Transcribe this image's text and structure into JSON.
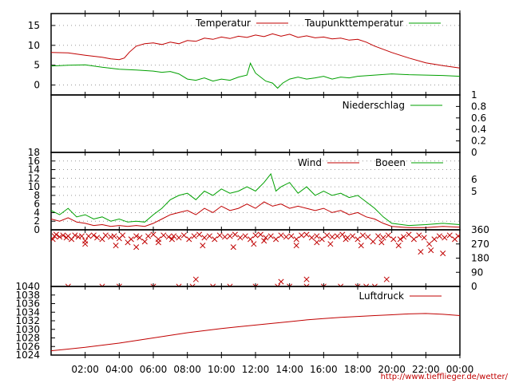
{
  "chart_data": {
    "type": "line",
    "credit": "http://www.tiefflieger.de/wetter/",
    "x_axis": {
      "labels": [
        "02:00",
        "04:00",
        "06:00",
        "08:00",
        "10:00",
        "12:00",
        "14:00",
        "16:00",
        "18:00",
        "20:00",
        "22:00",
        "00:00"
      ],
      "range_hours": [
        0,
        24
      ]
    },
    "panels": [
      {
        "id": "temperature",
        "ylim": [
          -2.5,
          18
        ],
        "y_ticks": [
          0,
          5,
          10,
          15
        ],
        "y_tick_labels": [
          "0",
          "5",
          "10",
          "15"
        ],
        "grid": true,
        "series": [
          {
            "name": "Temperatur",
            "color": "#c00000",
            "x": [
              0,
              1,
              2,
              3,
              3.5,
              4,
              4.3,
              4.6,
              5,
              5.5,
              6,
              6.5,
              7,
              7.5,
              8,
              8.5,
              9,
              9.5,
              10,
              10.5,
              11,
              11.5,
              12,
              12.5,
              13,
              13.5,
              14,
              14.5,
              15,
              15.5,
              16,
              16.5,
              17,
              17.5,
              18,
              18.5,
              19,
              20,
              21,
              22,
              23,
              24
            ],
            "y": [
              8.2,
              8.1,
              7.5,
              7.0,
              6.6,
              6.4,
              6.8,
              8.3,
              9.8,
              10.4,
              10.6,
              10.2,
              10.8,
              10.4,
              11.2,
              11.0,
              11.8,
              11.5,
              12.1,
              11.7,
              12.3,
              12.0,
              12.6,
              12.2,
              12.9,
              12.3,
              12.8,
              12.0,
              12.4,
              11.9,
              12.1,
              11.6,
              11.8,
              11.3,
              11.5,
              10.8,
              9.8,
              8.2,
              6.8,
              5.6,
              4.9,
              4.3
            ]
          },
          {
            "name": "Taupunkttemperatur",
            "color": "#00a000",
            "x": [
              0,
              1,
              2,
              3,
              4,
              5,
              6,
              6.5,
              7,
              7.5,
              8,
              8.5,
              9,
              9.5,
              10,
              10.5,
              11,
              11.5,
              11.7,
              12,
              12.3,
              12.6,
              13,
              13.3,
              13.6,
              14,
              14.5,
              15,
              15.5,
              16,
              16.5,
              17,
              17.5,
              18,
              19,
              20,
              21,
              22,
              23,
              24
            ],
            "y": [
              4.8,
              5.0,
              5.1,
              4.5,
              4.0,
              3.8,
              3.5,
              3.2,
              3.4,
              2.8,
              1.5,
              1.2,
              1.8,
              1.0,
              1.5,
              1.2,
              2.0,
              2.5,
              5.5,
              3.0,
              2.0,
              1.0,
              0.5,
              -0.8,
              0.5,
              1.5,
              2.0,
              1.5,
              1.8,
              2.2,
              1.5,
              2.0,
              1.8,
              2.2,
              2.5,
              2.8,
              2.6,
              2.5,
              2.4,
              2.2
            ]
          }
        ]
      },
      {
        "id": "precipitation",
        "ylim": [
          0,
          1
        ],
        "y_ticks": [
          0,
          0.2,
          0.4,
          0.6,
          0.8,
          1
        ],
        "y_tick_labels": [
          "0",
          "0.2",
          "0.4",
          "0.6",
          "0.8",
          "1"
        ],
        "y_axis_side": "right",
        "grid": false,
        "series": [
          {
            "name": "Niederschlag",
            "color": "#00a000",
            "x": [
              0,
              24
            ],
            "y": [
              0,
              0
            ]
          }
        ]
      },
      {
        "id": "wind",
        "ylim": [
          0,
          18
        ],
        "y_ticks": [
          0,
          2,
          4,
          6,
          8,
          10,
          12,
          14,
          16,
          18
        ],
        "y_tick_labels": [
          "0",
          "2",
          "4",
          "6",
          "8",
          "10",
          "12",
          "14",
          "16",
          "18"
        ],
        "secondary_y_labels": [
          "5",
          "6"
        ],
        "grid": true,
        "series": [
          {
            "name": "Wind",
            "color": "#c00000",
            "x": [
              0,
              0.5,
              1,
              1.5,
              2,
              2.5,
              3,
              3.5,
              4,
              4.5,
              5,
              5.5,
              6,
              6.5,
              7,
              7.5,
              8,
              8.5,
              9,
              9.5,
              10,
              10.5,
              11,
              11.5,
              12,
              12.5,
              13,
              13.5,
              14,
              14.5,
              15,
              15.5,
              16,
              16.5,
              17,
              17.5,
              18,
              18.5,
              19,
              19.5,
              20,
              21,
              22,
              23,
              24
            ],
            "y": [
              2.5,
              2.0,
              2.8,
              1.8,
              1.5,
              1.0,
              1.2,
              0.8,
              1.0,
              0.8,
              1.0,
              0.8,
              1.5,
              2.5,
              3.5,
              4.0,
              4.5,
              3.5,
              5.0,
              4.0,
              5.5,
              4.5,
              5.0,
              6.0,
              5.0,
              6.5,
              5.5,
              6.0,
              5.0,
              5.5,
              5.0,
              4.5,
              5.0,
              4.0,
              4.5,
              3.5,
              4.0,
              3.0,
              2.5,
              1.5,
              0.8,
              0.5,
              0.5,
              0.8,
              0.6
            ]
          },
          {
            "name": "Boeen",
            "color": "#00a000",
            "x": [
              0,
              0.5,
              1,
              1.5,
              2,
              2.5,
              3,
              3.5,
              4,
              4.5,
              5,
              5.5,
              6,
              6.5,
              7,
              7.5,
              8,
              8.5,
              9,
              9.5,
              10,
              10.5,
              11,
              11.5,
              12,
              12.5,
              12.9,
              13.2,
              13.5,
              14,
              14.5,
              15,
              15.5,
              16,
              16.5,
              17,
              17.5,
              18,
              18.5,
              19,
              19.5,
              20,
              21,
              22,
              23,
              24
            ],
            "y": [
              4.5,
              3.5,
              5.0,
              3.0,
              3.5,
              2.5,
              3.0,
              2.0,
              2.5,
              1.8,
              2.0,
              1.8,
              3.5,
              5.0,
              7.0,
              8.0,
              8.5,
              7.0,
              9.0,
              8.0,
              9.5,
              8.5,
              9.0,
              10.0,
              9.0,
              11.0,
              13.0,
              9.0,
              10.0,
              11.0,
              8.5,
              10.0,
              8.0,
              9.0,
              8.0,
              8.5,
              7.5,
              8.0,
              6.5,
              5.0,
              3.0,
              1.5,
              1.0,
              1.2,
              1.5,
              1.2
            ]
          }
        ]
      },
      {
        "id": "wind_direction",
        "ylim": [
          0,
          360
        ],
        "y_ticks": [
          0,
          90,
          180,
          270,
          360
        ],
        "y_tick_labels": [
          "0",
          "90",
          "180",
          "270",
          "360"
        ],
        "y_axis_side": "right",
        "grid": false,
        "points_x": [
          0.1,
          0.2,
          0.3,
          0.5,
          0.7,
          0.9,
          1.0,
          1.2,
          1.4,
          1.6,
          1.8,
          2.0,
          2.2,
          2.5,
          2.7,
          3.0,
          3.2,
          3.5,
          3.7,
          4.0,
          4.2,
          4.5,
          4.7,
          5.0,
          5.2,
          5.5,
          5.7,
          6.0,
          6.3,
          6.6,
          6.9,
          7.2,
          7.5,
          7.8,
          8.1,
          8.4,
          8.7,
          9.0,
          9.3,
          9.6,
          9.9,
          10.2,
          10.5,
          10.8,
          11.1,
          11.4,
          11.7,
          12.0,
          12.3,
          12.6,
          12.9,
          13.2,
          13.5,
          13.8,
          14.1,
          14.4,
          14.7,
          15.0,
          15.3,
          15.6,
          15.9,
          16.2,
          16.5,
          16.8,
          17.1,
          17.4,
          17.7,
          18.0,
          18.3,
          18.6,
          18.9,
          19.2,
          19.5,
          19.8,
          20.1,
          20.4,
          20.7,
          21.0,
          21.3,
          21.6,
          21.9,
          22.2,
          22.5,
          22.8,
          23.1,
          23.4,
          23.7,
          23.9,
          1.0,
          3.0,
          4.0,
          6.0,
          7.5,
          8.3,
          9.5,
          10.5,
          12.0,
          13.3,
          14.0,
          15.0,
          16.0,
          17.0,
          18.0,
          18.5,
          19.0,
          8.5,
          13.5,
          15.0,
          19.7,
          2.0,
          3.8,
          5.0,
          6.3,
          7.1,
          8.9,
          10.7,
          11.9,
          12.5,
          14.4,
          15.6,
          16.4,
          17.3,
          18.2,
          19.4,
          20.5,
          21.7,
          22.3,
          23.0
        ],
        "points_y": [
          300,
          320,
          330,
          315,
          325,
          310,
          320,
          300,
          325,
          315,
          320,
          290,
          320,
          325,
          310,
          300,
          325,
          315,
          320,
          305,
          325,
          280,
          300,
          320,
          310,
          285,
          320,
          330,
          300,
          325,
          315,
          320,
          310,
          325,
          300,
          320,
          330,
          310,
          320,
          300,
          325,
          315,
          320,
          330,
          310,
          320,
          300,
          325,
          330,
          310,
          320,
          300,
          325,
          315,
          320,
          300,
          325,
          330,
          310,
          320,
          300,
          325,
          315,
          320,
          330,
          310,
          320,
          300,
          325,
          315,
          285,
          320,
          310,
          325,
          300,
          260,
          315,
          330,
          300,
          325,
          310,
          270,
          300,
          320,
          310,
          325,
          300,
          320,
          0,
          0,
          0,
          0,
          0,
          0,
          0,
          0,
          0,
          0,
          0,
          0,
          0,
          0,
          0,
          0,
          0,
          45,
          30,
          45,
          45,
          270,
          260,
          250,
          280,
          300,
          260,
          250,
          270,
          290,
          260,
          280,
          270,
          300,
          260,
          280,
          300,
          220,
          230,
          210
        ],
        "color": "#c00000",
        "marker": "x"
      },
      {
        "id": "pressure",
        "ylim": [
          1024,
          1040
        ],
        "y_ticks": [
          1024,
          1026,
          1028,
          1030,
          1032,
          1034,
          1036,
          1038,
          1040
        ],
        "y_tick_labels": [
          "1024",
          "1026",
          "1028",
          "1030",
          "1032",
          "1034",
          "1036",
          "1038",
          "1040"
        ],
        "grid": false,
        "series": [
          {
            "name": "Luftdruck",
            "color": "#c00000",
            "x": [
              0,
              1,
              2,
              3,
              4,
              5,
              6,
              7,
              8,
              9,
              10,
              11,
              12,
              13,
              14,
              15,
              16,
              17,
              18,
              19,
              20,
              21,
              22,
              23,
              24
            ],
            "y": [
              1025.0,
              1025.4,
              1025.8,
              1026.3,
              1026.8,
              1027.4,
              1028.0,
              1028.6,
              1029.2,
              1029.7,
              1030.2,
              1030.6,
              1031.0,
              1031.4,
              1031.8,
              1032.2,
              1032.5,
              1032.8,
              1033.0,
              1033.2,
              1033.4,
              1033.6,
              1033.7,
              1033.5,
              1033.2
            ]
          }
        ]
      }
    ]
  }
}
